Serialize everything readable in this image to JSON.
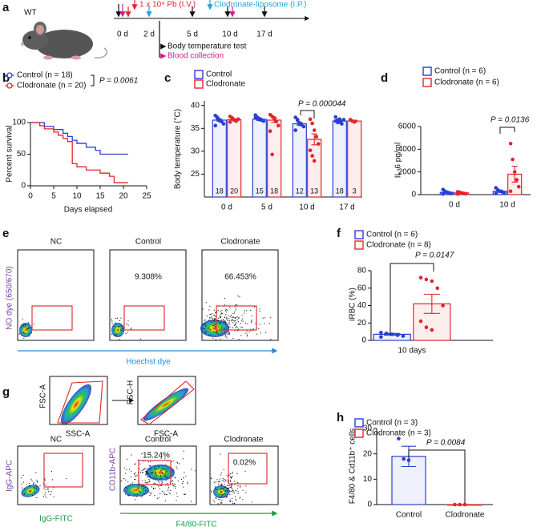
{
  "timeline": {
    "letter": "a",
    "mouse": "WT",
    "infection": "1 x 10⁴ Pb (I.V.)",
    "treatment": "Clodronate-liposome (I.P.)",
    "days": [
      "0 d",
      "2 d",
      "5 d",
      "10 d",
      "17 d"
    ],
    "test": "Body temperature test",
    "collection": "Blood collection"
  },
  "chart_data": [
    {
      "type": "line",
      "letter": "b",
      "ylabel": "Percent survival",
      "xlabel": "Days elapsed",
      "xlim": [
        0,
        25
      ],
      "xticks": [
        0,
        5,
        10,
        15,
        20,
        25
      ],
      "ylim": [
        0,
        100
      ],
      "yticks": [
        0,
        50,
        100
      ],
      "annotation": "P = 0.0061",
      "series": [
        {
          "name": "Control (n = 18)",
          "color": "#2a3fd0",
          "x": [
            0,
            3,
            5,
            7,
            8,
            9,
            10,
            12,
            14,
            15,
            21
          ],
          "values": [
            100,
            94,
            89,
            83,
            78,
            72,
            67,
            61,
            56,
            50,
            50
          ]
        },
        {
          "name": "Clodronate (n = 20)",
          "color": "#e0262a",
          "x": [
            0,
            2,
            3,
            5,
            6,
            7,
            8,
            9,
            10,
            12,
            15,
            17,
            18,
            21
          ],
          "values": [
            100,
            95,
            90,
            85,
            80,
            75,
            70,
            35,
            30,
            25,
            20,
            15,
            5,
            5
          ]
        }
      ]
    },
    {
      "type": "bar",
      "letter": "c",
      "ylabel": "Body temperature (°C)",
      "categories": [
        "0 d",
        "5 d",
        "10 d",
        "17 d"
      ],
      "ylim": [
        20,
        41
      ],
      "yticks": [
        25,
        30,
        35,
        40
      ],
      "annotation": "P = 0.000044",
      "series": [
        {
          "name": "Control",
          "color": "#2a3fd0",
          "values": [
            36.8,
            37.0,
            36.0,
            36.6
          ],
          "errors": [
            0.2,
            0.2,
            0.3,
            0.2
          ],
          "n_labels": [
            "18",
            "15",
            "12",
            "18"
          ],
          "points": [
            [
              37.8,
              37.2,
              36.9,
              36.5,
              36.0,
              35.6,
              37.4,
              36.7
            ],
            [
              37.9,
              37.4,
              37.1,
              36.8,
              36.6,
              37.3,
              37.0,
              36.9
            ],
            [
              37.4,
              36.8,
              36.2,
              35.8,
              35.4,
              34.6,
              36.9,
              35.9
            ],
            [
              37.5,
              36.8,
              36.4,
              36.0,
              36.9,
              36.6,
              36.3,
              37.0
            ]
          ]
        },
        {
          "name": "Clodronate",
          "color": "#e0262a",
          "values": [
            36.9,
            36.8,
            32.6,
            36.6
          ],
          "errors": [
            0.15,
            0.5,
            1.2,
            0.2
          ],
          "n_labels": [
            "20",
            "18",
            "13",
            "3"
          ],
          "points": [
            [
              37.6,
              37.2,
              36.9,
              36.6,
              37.0,
              36.4,
              37.3,
              36.8
            ],
            [
              38.0,
              37.6,
              37.1,
              36.5,
              35.6,
              34.4,
              29.3,
              37.3
            ],
            [
              37.0,
              36.1,
              34.6,
              33.2,
              31.6,
              30.2,
              29.0,
              27.9
            ],
            [
              36.9,
              36.6,
              36.4
            ]
          ]
        }
      ]
    },
    {
      "type": "bar",
      "letter": "d",
      "ylabel": "IL-6 pg/ml",
      "categories": [
        "0 d",
        "10 d"
      ],
      "ylim": [
        0,
        6000
      ],
      "yticks": [
        0,
        2000,
        4000,
        6000
      ],
      "annotation": "P = 0.0136",
      "series": [
        {
          "name": "Control (n = 6)",
          "color": "#2a3fd0",
          "values": [
            200,
            300
          ],
          "errors": [
            80,
            100
          ],
          "points": [
            [
              450,
              300,
              200,
              150,
              100,
              60
            ],
            [
              600,
              400,
              300,
              250,
              150,
              100
            ]
          ]
        },
        {
          "name": "Clodronate (n = 6)",
          "color": "#e0262a",
          "values": [
            150,
            1800
          ],
          "errors": [
            50,
            700
          ],
          "points": [
            [
              250,
              200,
              150,
              100,
              80,
              50
            ],
            [
              4500,
              3100,
              2000,
              1300,
              700,
              300
            ]
          ]
        }
      ]
    },
    {
      "type": "bar",
      "letter": "f",
      "ylabel": "iRBC (%)",
      "categories": [
        "10 days"
      ],
      "ylim": [
        0,
        80
      ],
      "yticks": [
        0,
        20,
        40,
        60,
        80
      ],
      "annotation": "P = 0.0147",
      "series": [
        {
          "name": "Control (n = 6)",
          "color": "#2a3fd0",
          "values": [
            7
          ],
          "errors": [
            1
          ],
          "points": [
            [
              9,
              8,
              7,
              6,
              5,
              4
            ]
          ]
        },
        {
          "name": "Clodronate (n = 8)",
          "color": "#e0262a",
          "values": [
            42
          ],
          "errors": [
            11
          ],
          "points": [
            [
              72,
              70,
              68,
              60,
              40,
              22,
              15,
              12
            ]
          ]
        }
      ]
    },
    {
      "type": "bar",
      "letter": "h",
      "ylabel": "F4/80 & Cd11b⁺ cells",
      "categories": [
        "Control",
        "Clodronate"
      ],
      "ylim": [
        0,
        30
      ],
      "yticks": [
        0,
        10,
        20,
        30
      ],
      "annotation": "P = 0.0084",
      "series": [
        {
          "name": "Control (n = 3)",
          "color": "#2a3fd0",
          "values": [
            19,
            null
          ],
          "errors": [
            4,
            null
          ],
          "points": [
            [
              26,
              18,
              17.5
            ],
            null
          ]
        },
        {
          "name": "Clodronate (n = 3)",
          "color": "#e0262a",
          "values": [
            null,
            0
          ],
          "errors": [
            null,
            0
          ],
          "points": [
            null,
            [
              0,
              0,
              0
            ]
          ]
        }
      ]
    }
  ],
  "flow_e": {
    "letter": "e",
    "titles": [
      "NC",
      "Control",
      "Clodronate"
    ],
    "percents": [
      "9.308%",
      "66.453%"
    ],
    "ylabel": "NO dye (650/670)",
    "xlabel": "Hoechst dye"
  },
  "flow_g": {
    "letter": "g",
    "gate_y1": "FSC-A",
    "gate_x1": "SSC-A",
    "gate_y2": "FSC-H",
    "gate_x2": "FSC-A",
    "titles": [
      "NC",
      "Control",
      "Clodronate"
    ],
    "percents": [
      "15.24%",
      "0.02%"
    ],
    "nc_ylabel": "IgG-APC",
    "nc_xlabel": "IgG-FITC",
    "ylabel": "CD11b-APC",
    "xlabel": "F4/80-FITC"
  }
}
